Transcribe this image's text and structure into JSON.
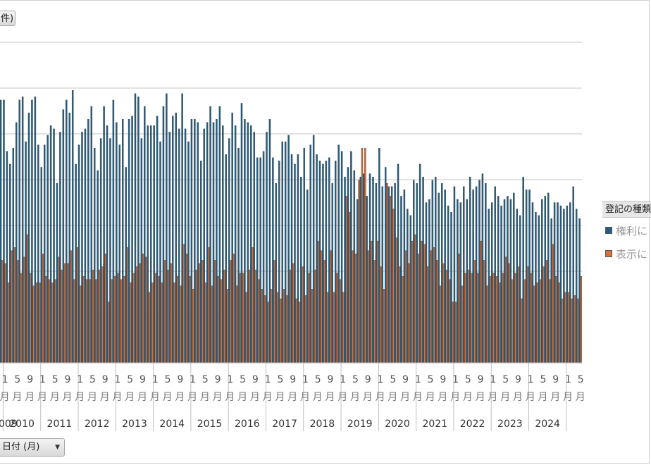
{
  "top_field_button": {
    "label": "件)"
  },
  "axis_field_button": {
    "label": "日付 (月)"
  },
  "legend": {
    "title": "登記の種類",
    "items": [
      {
        "label": "権利に",
        "color": "#1f5f86"
      },
      {
        "label": "表示に",
        "color": "#d9703a"
      }
    ]
  },
  "colors": {
    "grid": "#d9d9d9",
    "axis": "#bfbfbf",
    "bar_outline": "#404040"
  },
  "chart_data": {
    "type": "bar",
    "stacked": false,
    "grid": true,
    "legend_position": "right",
    "x_start_month": "2008-12",
    "x_end_month": "2024-01",
    "first_visible_year_label": "009",
    "years": [
      "2010",
      "2011",
      "2012",
      "2013",
      "2014",
      "2015",
      "2016",
      "2017",
      "2018",
      "2019",
      "2020",
      "2021",
      "2022",
      "2023",
      "2024"
    ],
    "month_ticks": [
      "1",
      "5",
      "9"
    ],
    "month_unit": "月",
    "ylim": [
      0,
      100
    ],
    "series": [
      {
        "name": "権利に",
        "values": [
          82,
          82,
          66,
          62,
          67,
          75,
          82,
          83,
          69,
          78,
          82,
          83,
          68,
          61,
          68,
          71,
          74,
          73,
          56,
          72,
          79,
          82,
          78,
          85,
          62,
          68,
          72,
          73,
          76,
          80,
          67,
          60,
          70,
          80,
          74,
          70,
          82,
          75,
          68,
          76,
          61,
          76,
          77,
          84,
          83,
          70,
          80,
          74,
          74,
          74,
          77,
          69,
          80,
          84,
          72,
          77,
          78,
          73,
          84,
          73,
          69,
          76,
          76,
          75,
          63,
          73,
          75,
          80,
          75,
          76,
          80,
          74,
          65,
          70,
          78,
          74,
          67,
          81,
          76,
          75,
          74,
          72,
          64,
          64,
          66,
          72,
          76,
          64,
          56,
          63,
          69,
          69,
          71,
          65,
          62,
          65,
          58,
          67,
          54,
          68,
          71,
          65,
          63,
          62,
          63,
          64,
          56,
          63,
          68,
          66,
          58,
          61,
          66,
          60,
          51,
          58,
          59,
          52,
          59,
          58,
          56,
          67,
          55,
          61,
          55,
          55,
          56,
          62,
          52,
          54,
          48,
          46,
          57,
          56,
          62,
          58,
          50,
          51,
          57,
          58,
          53,
          56,
          54,
          49,
          47,
          55,
          51,
          50,
          55,
          51,
          58,
          54,
          55,
          57,
          59,
          56,
          48,
          50,
          55,
          52,
          49,
          51,
          52,
          51,
          53,
          48,
          46,
          58,
          54,
          54,
          50,
          47,
          46,
          51,
          52,
          53,
          45,
          50,
          50,
          49,
          48,
          49,
          50,
          55,
          48,
          45
        ],
        "color": "#1f5f86"
      },
      {
        "name": "表示に",
        "values": [
          32,
          31,
          25,
          35,
          36,
          32,
          28,
          33,
          40,
          28,
          24,
          25,
          25,
          34,
          27,
          26,
          25,
          26,
          33,
          29,
          31,
          31,
          35,
          26,
          36,
          24,
          27,
          26,
          26,
          29,
          26,
          29,
          30,
          34,
          19,
          26,
          27,
          28,
          26,
          27,
          36,
          25,
          28,
          30,
          31,
          34,
          33,
          22,
          25,
          28,
          27,
          25,
          32,
          29,
          31,
          25,
          27,
          24,
          37,
          34,
          27,
          23,
          29,
          31,
          32,
          25,
          36,
          24,
          32,
          27,
          26,
          29,
          23,
          32,
          34,
          24,
          28,
          28,
          22,
          29,
          36,
          29,
          26,
          23,
          21,
          19,
          23,
          32,
          22,
          20,
          23,
          21,
          29,
          31,
          20,
          19,
          30,
          21,
          28,
          23,
          29,
          38,
          35,
          32,
          22,
          35,
          22,
          28,
          26,
          22,
          52,
          47,
          35,
          34,
          57,
          67,
          67,
          35,
          38,
          32,
          38,
          30,
          23,
          56,
          52,
          48,
          39,
          30,
          27,
          35,
          31,
          38,
          40,
          34,
          38,
          37,
          30,
          35,
          36,
          32,
          24,
          31,
          29,
          26,
          19,
          19,
          34,
          24,
          28,
          29,
          28,
          32,
          28,
          38,
          32,
          24,
          27,
          28,
          27,
          25,
          28,
          33,
          31,
          26,
          28,
          30,
          20,
          26,
          30,
          28,
          24,
          25,
          26,
          30,
          32,
          26,
          37,
          27,
          25,
          20,
          22,
          22,
          20,
          21,
          20,
          27
        ],
        "color": "#d9703a"
      }
    ]
  }
}
